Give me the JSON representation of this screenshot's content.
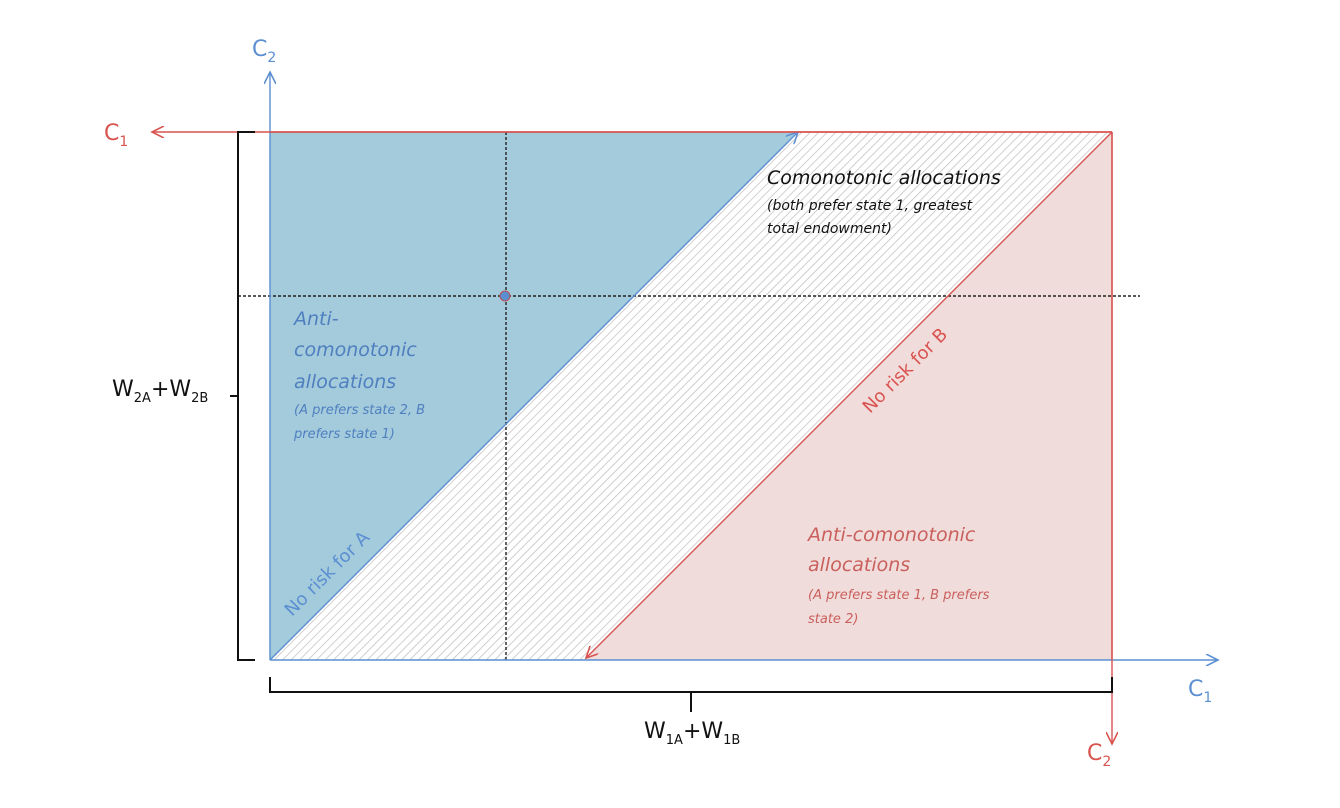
{
  "axes": {
    "A": {
      "c2": {
        "main": "C",
        "sub": "2"
      },
      "c1": {
        "main": "C",
        "sub": "1"
      }
    },
    "B": {
      "c1": {
        "main": "C",
        "sub": "1"
      },
      "c2": {
        "main": "C",
        "sub": "2"
      }
    }
  },
  "brackets": {
    "total_state2": {
      "w1": "W",
      "s1": "2A",
      "plus": "+",
      "w2": "W",
      "s2": "2B"
    },
    "total_state1": {
      "w1": "W",
      "s1": "1A",
      "plus": "+",
      "w2": "W",
      "s2": "1B"
    }
  },
  "regions": {
    "comonotonic": {
      "title": "Comonotonic allocations",
      "note_line1": "(both prefer state 1, greatest",
      "note_line2": "total endowment)"
    },
    "anti_A": {
      "line1": "Anti-",
      "line2": "comonotonic",
      "line3": "allocations",
      "note_line1": "(A prefers state 2, B",
      "note_line2": "prefers state 1)"
    },
    "anti_B": {
      "line1": "Anti-comonotonic",
      "line2": "allocations",
      "note_line1": "(A prefers state 1, B prefers",
      "note_line2": "state 2)"
    }
  },
  "lines": {
    "no_risk_A": "No risk for A",
    "no_risk_B": "No risk for B"
  },
  "colors": {
    "blue": "#5b8fd1",
    "blue_fill": "#a3cbdc",
    "red": "#d9534f",
    "red_fill": "#f1dcdc",
    "hatch": "#c9c9c9"
  }
}
